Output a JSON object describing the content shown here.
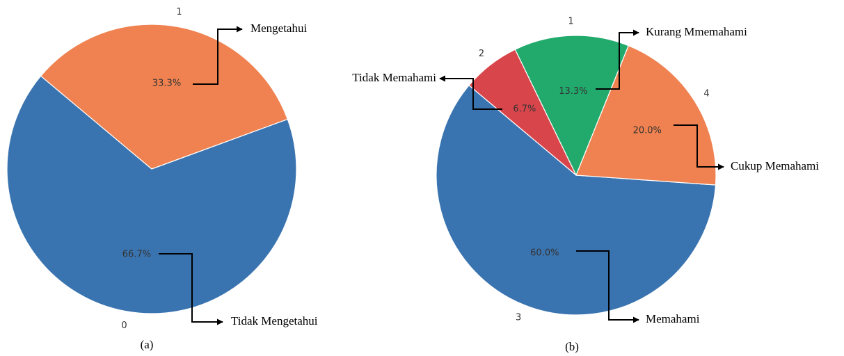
{
  "chart_data": [
    {
      "type": "pie",
      "caption": "(a)",
      "categories": [
        "0",
        "1"
      ],
      "values": [
        66.7,
        33.3
      ],
      "value_labels": [
        "66.7%",
        "33.3%"
      ],
      "annotations": [
        "Tidak Mengetahui",
        "Mengetahui"
      ],
      "colors": [
        "#3a74b0",
        "#ef8250"
      ]
    },
    {
      "type": "pie",
      "caption": "(b)",
      "categories": [
        "1",
        "2",
        "3",
        "4"
      ],
      "values": [
        13.3,
        6.7,
        60.0,
        20.0
      ],
      "value_labels": [
        "13.3%",
        "6.7%",
        "60.0%",
        "20.0%"
      ],
      "annotations": [
        "Kurang Mmemahami",
        "Tidak Memahami",
        "Memahami",
        "Cukup Memahami"
      ],
      "colors": [
        "#22aa6c",
        "#d8464c",
        "#3a74b0",
        "#ef8250"
      ]
    }
  ]
}
